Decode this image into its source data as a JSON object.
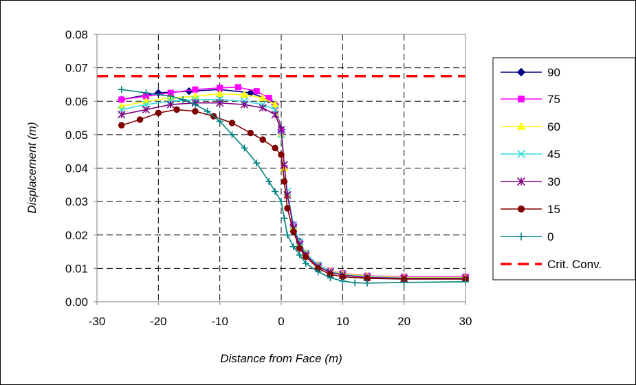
{
  "chart_data": {
    "type": "line",
    "xlabel": "Distance from Face (m)",
    "ylabel": "Displacement (m)",
    "xlim": [
      -30,
      30
    ],
    "ylim": [
      0,
      0.08
    ],
    "xticks": [
      "-30",
      "-20",
      "-10",
      "0",
      "10",
      "20",
      "30"
    ],
    "yticks": [
      "0.00",
      "0.01",
      "0.02",
      "0.03",
      "0.04",
      "0.05",
      "0.06",
      "0.07",
      "0.08"
    ],
    "grid": true,
    "legend_position": "right",
    "series": [
      {
        "name": "90",
        "color": "#000080",
        "marker": "diamond",
        "x": [
          -26,
          -20,
          -15,
          -10,
          -5,
          -2,
          -1,
          0,
          0.5,
          1,
          2,
          3,
          4,
          6,
          8,
          10,
          14,
          20,
          30
        ],
        "y": [
          0.0605,
          0.0625,
          0.063,
          0.0635,
          0.0625,
          0.0605,
          0.059,
          0.0515,
          0.04,
          0.032,
          0.023,
          0.018,
          0.0145,
          0.011,
          0.009,
          0.0082,
          0.0075,
          0.0072,
          0.0072
        ]
      },
      {
        "name": "75",
        "color": "#ff00ff",
        "marker": "square",
        "x": [
          -26,
          -22,
          -18,
          -14,
          -10,
          -7,
          -4,
          -2,
          -1,
          0,
          0.5,
          1,
          2,
          3,
          4,
          6,
          8,
          10,
          14,
          20,
          30
        ],
        "y": [
          0.0605,
          0.0615,
          0.0625,
          0.0635,
          0.064,
          0.0642,
          0.063,
          0.061,
          0.0585,
          0.051,
          0.04,
          0.032,
          0.023,
          0.0175,
          0.0145,
          0.011,
          0.0093,
          0.0085,
          0.0078,
          0.0075,
          0.0075
        ]
      },
      {
        "name": "60",
        "color": "#ffff00",
        "marker": "triangle",
        "x": [
          -26,
          -22,
          -18,
          -14,
          -10,
          -6,
          -3,
          -1,
          0,
          0.5,
          1,
          2,
          3,
          4,
          6,
          8,
          10,
          14,
          20,
          30
        ],
        "y": [
          0.0585,
          0.06,
          0.061,
          0.0615,
          0.0622,
          0.062,
          0.061,
          0.059,
          0.05,
          0.04,
          0.032,
          0.0225,
          0.0175,
          0.0145,
          0.011,
          0.0092,
          0.0084,
          0.0077,
          0.0073,
          0.0073
        ]
      },
      {
        "name": "45",
        "color": "#33dddd",
        "marker": "x",
        "x": [
          -26,
          -22,
          -18,
          -14,
          -10,
          -6,
          -3,
          -1,
          0,
          0.5,
          1,
          2,
          3,
          4,
          6,
          8,
          10,
          14,
          20,
          30
        ],
        "y": [
          0.0575,
          0.059,
          0.06,
          0.0605,
          0.0605,
          0.06,
          0.059,
          0.0575,
          0.05,
          0.041,
          0.033,
          0.023,
          0.018,
          0.0145,
          0.011,
          0.009,
          0.0082,
          0.0075,
          0.0071,
          0.0071
        ]
      },
      {
        "name": "30",
        "color": "#800080",
        "marker": "star",
        "x": [
          -26,
          -22,
          -18,
          -14,
          -10,
          -6,
          -3,
          -1,
          0,
          0.5,
          1,
          2,
          3,
          4,
          6,
          8,
          10,
          14,
          20,
          30
        ],
        "y": [
          0.056,
          0.0575,
          0.059,
          0.0595,
          0.0595,
          0.059,
          0.058,
          0.056,
          0.0515,
          0.041,
          0.032,
          0.022,
          0.017,
          0.014,
          0.0105,
          0.0088,
          0.008,
          0.0073,
          0.007,
          0.007
        ]
      },
      {
        "name": "15",
        "color": "#800000",
        "marker": "circle",
        "x": [
          -26,
          -23,
          -20,
          -17,
          -14,
          -11,
          -8,
          -5,
          -3,
          -1,
          0,
          0.5,
          1,
          2,
          3,
          4,
          6,
          8,
          10,
          14,
          20,
          30
        ],
        "y": [
          0.0528,
          0.0545,
          0.0565,
          0.0575,
          0.057,
          0.0555,
          0.0535,
          0.0505,
          0.0485,
          0.046,
          0.044,
          0.036,
          0.028,
          0.021,
          0.016,
          0.0135,
          0.01,
          0.0082,
          0.0075,
          0.007,
          0.0068,
          0.0068
        ]
      },
      {
        "name": "0",
        "color": "#008080",
        "marker": "plus",
        "x": [
          -26,
          -22,
          -18,
          -16,
          -14,
          -12,
          -10,
          -8,
          -6,
          -4,
          -2,
          -1,
          0,
          0.5,
          1,
          2,
          3,
          4,
          6,
          8,
          10,
          12,
          14,
          20,
          30
        ],
        "y": [
          0.0635,
          0.0625,
          0.0615,
          0.0605,
          0.059,
          0.057,
          0.054,
          0.05,
          0.046,
          0.0415,
          0.036,
          0.033,
          0.03,
          0.025,
          0.02,
          0.0165,
          0.014,
          0.0115,
          0.009,
          0.0072,
          0.0062,
          0.0057,
          0.0056,
          0.0058,
          0.006
        ]
      }
    ],
    "reference_lines": [
      {
        "name": "Crit. Conv.",
        "y": 0.0675,
        "color": "#ff0000",
        "style": "dashed"
      }
    ]
  }
}
